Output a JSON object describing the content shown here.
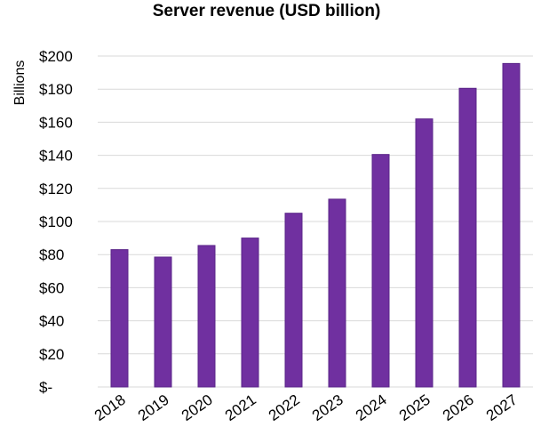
{
  "chart_data": {
    "type": "bar",
    "title": "Server revenue (USD billion)",
    "ylabel": "Billions",
    "xlabel": "",
    "categories": [
      "2018",
      "2019",
      "2020",
      "2021",
      "2022",
      "2023",
      "2024",
      "2025",
      "2026",
      "2027"
    ],
    "values": [
      83,
      78.5,
      85.5,
      90,
      105,
      113.5,
      140.5,
      162,
      180.5,
      195.5
    ],
    "ylim": [
      0,
      200
    ],
    "yticks": [
      {
        "value": 0,
        "label": "$-"
      },
      {
        "value": 20,
        "label": "$20"
      },
      {
        "value": 40,
        "label": "$40"
      },
      {
        "value": 60,
        "label": "$60"
      },
      {
        "value": 80,
        "label": "$80"
      },
      {
        "value": 100,
        "label": "$100"
      },
      {
        "value": 120,
        "label": "$120"
      },
      {
        "value": 140,
        "label": "$140"
      },
      {
        "value": 160,
        "label": "$160"
      },
      {
        "value": 180,
        "label": "$180"
      },
      {
        "value": 200,
        "label": "$200"
      }
    ],
    "grid": true,
    "legend": "none",
    "bar_color": "#7030a0",
    "bar_edge_color": "#5a2488"
  }
}
